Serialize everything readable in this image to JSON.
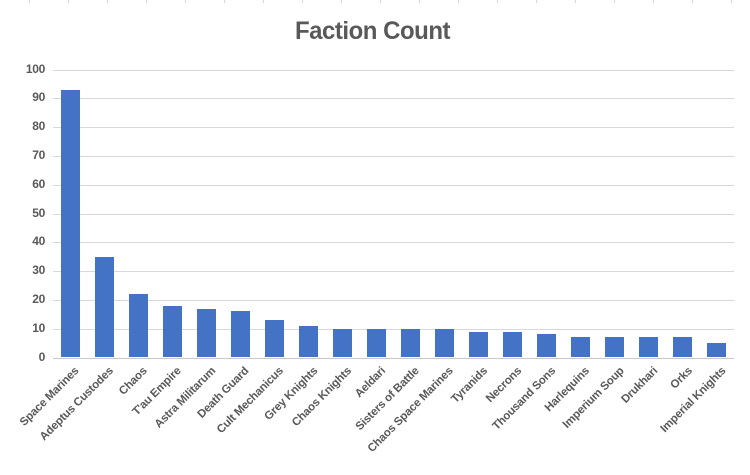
{
  "chart_data": {
    "type": "bar",
    "title": "Faction Count",
    "categories": [
      "Space Marines",
      "Adeptus Custodes",
      "Chaos",
      "T'au Empire",
      "Astra Militarum",
      "Death Guard",
      "Cult Mechanicus",
      "Grey Knights",
      "Chaos Knights",
      "Aeldari",
      "Sisters of Battle",
      "Chaos Space Marines",
      "Tyranids",
      "Necrons",
      "Thousand Sons",
      "Harlequins",
      "Imperium Soup",
      "Drukhari",
      "Orks",
      "Imperial Knights"
    ],
    "values": [
      93,
      35,
      22,
      18,
      17,
      16,
      13,
      11,
      10,
      10,
      10,
      10,
      9,
      9,
      8,
      7,
      7,
      7,
      7,
      5
    ],
    "xlabel": "",
    "ylabel": "",
    "ylim": [
      0,
      100
    ],
    "ytick_step": 10,
    "ytick_labels": [
      "0",
      "10",
      "20",
      "30",
      "40",
      "50",
      "60",
      "70",
      "80",
      "90",
      "100"
    ],
    "grid": "horizontal",
    "legend_position": "none",
    "bar_color": "#4472C4",
    "gridline_color": "#D9D9D9",
    "text_color": "#595959",
    "background_color": "#FFFFFF"
  }
}
